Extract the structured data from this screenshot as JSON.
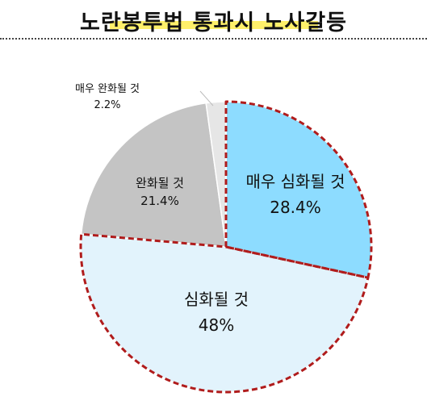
{
  "title": "노란봉투법 통과시 노사갈등",
  "chart_data": {
    "type": "pie",
    "categories": [
      "매우 심화될 것",
      "심화될 것",
      "완화될 것",
      "매우 완화될 것"
    ],
    "values": [
      28.4,
      48,
      21.4,
      2.2
    ],
    "labels": [
      "28.4%",
      "48%",
      "21.4%",
      "2.2%"
    ],
    "colors": [
      "#8ddcff",
      "#e2f3fc",
      "#c4c4c4",
      "#e6e6e6"
    ],
    "highlight_border_color": "#b01c1c",
    "start_angle_deg": 0,
    "direction": "clockwise"
  }
}
